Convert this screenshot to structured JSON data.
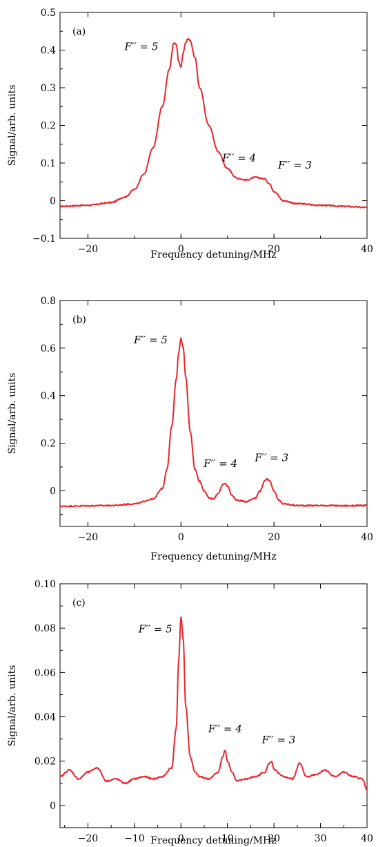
{
  "chart_data": [
    {
      "type": "line",
      "panel_label": "(a)",
      "xlabel": "Frequency detuning/MHz",
      "ylabel": "Signal/arb. units",
      "xlim": [
        -26,
        40
      ],
      "ylim": [
        -0.1,
        0.5
      ],
      "xticks": [
        -20,
        0,
        20,
        40
      ],
      "xtick_labels": [
        "−20",
        "0",
        "20",
        "40"
      ],
      "yticks": [
        -0.1,
        0,
        0.1,
        0.2,
        0.3,
        0.4,
        0.5
      ],
      "ytick_labels": [
        "−0.1",
        "0",
        "0.1",
        "0.2",
        "0.3",
        "0.4",
        "0.5"
      ],
      "grid": false,
      "color": "#e8262b",
      "series": [
        {
          "x": [
            -26,
            -20,
            -15,
            -12,
            -10,
            -8,
            -6,
            -4,
            -2.5,
            -1.5,
            -1,
            -0.5,
            0,
            0.5,
            1,
            1.5,
            2,
            3,
            4,
            6,
            8,
            10,
            12,
            14,
            16,
            18,
            19,
            20,
            22,
            25,
            30,
            35,
            40
          ],
          "y": [
            -0.015,
            -0.012,
            -0.005,
            0.01,
            0.03,
            0.07,
            0.14,
            0.25,
            0.35,
            0.42,
            0.415,
            0.37,
            0.355,
            0.395,
            0.42,
            0.43,
            0.425,
            0.38,
            0.3,
            0.2,
            0.13,
            0.085,
            0.06,
            0.055,
            0.062,
            0.058,
            0.045,
            0.025,
            0.0,
            -0.008,
            -0.012,
            -0.015,
            -0.018
          ]
        }
      ],
      "annotations": [
        {
          "text": "F′′ = 5",
          "x": -8.5,
          "y": 0.4
        },
        {
          "text": "F′′ = 4",
          "x": 12.5,
          "y": 0.105
        },
        {
          "text": "F′′ = 3",
          "x": 24.5,
          "y": 0.085
        }
      ]
    },
    {
      "type": "line",
      "panel_label": "(b)",
      "xlabel": "Frequency detuning/MHz",
      "ylabel": "Signal/arb. units",
      "xlim": [
        -26,
        40
      ],
      "ylim": [
        -0.15,
        0.8
      ],
      "xticks": [
        -20,
        0,
        20,
        40
      ],
      "xtick_labels": [
        "−20",
        "0",
        "20",
        "40"
      ],
      "yticks": [
        0,
        0.2,
        0.4,
        0.6,
        0.8
      ],
      "ytick_labels": [
        "0",
        "0.2",
        "0.4",
        "0.6",
        "0.8"
      ],
      "grid": false,
      "color": "#e8262b",
      "series": [
        {
          "x": [
            -26,
            -15,
            -10,
            -6,
            -4,
            -3,
            -2,
            -1,
            -0.5,
            0,
            0.5,
            1,
            2,
            3,
            4,
            5,
            6,
            7,
            8,
            9,
            9.5,
            10,
            11,
            12,
            14,
            16,
            17,
            18,
            18.5,
            19,
            20,
            21,
            22,
            25,
            30,
            35,
            40
          ],
          "y": [
            -0.065,
            -0.062,
            -0.055,
            -0.035,
            0.01,
            0.09,
            0.27,
            0.47,
            0.58,
            0.64,
            0.6,
            0.48,
            0.25,
            0.09,
            0.04,
            0.0,
            -0.03,
            -0.035,
            -0.01,
            0.025,
            0.03,
            0.02,
            -0.02,
            -0.04,
            -0.045,
            -0.03,
            0.0,
            0.04,
            0.05,
            0.045,
            0.0,
            -0.04,
            -0.055,
            -0.062,
            -0.062,
            -0.063,
            -0.062
          ]
        }
      ],
      "annotations": [
        {
          "text": "F′′ = 5",
          "x": -6.5,
          "y": 0.62
        },
        {
          "text": "F′′ = 4",
          "x": 8.5,
          "y": 0.1
        },
        {
          "text": "F′′ = 3",
          "x": 19.5,
          "y": 0.125
        }
      ]
    },
    {
      "type": "line",
      "panel_label": "(c)",
      "xlabel": "Frequency detuning/MHz",
      "ylabel": "Signal/arb. units",
      "xlim": [
        -26,
        40
      ],
      "ylim": [
        -0.01,
        0.1
      ],
      "xticks": [
        -20,
        -10,
        0,
        10,
        20,
        30,
        40
      ],
      "xtick_labels": [
        "−20",
        "−10",
        "0",
        "10",
        "20",
        "30",
        "40"
      ],
      "yticks": [
        0,
        0.02,
        0.04,
        0.06,
        0.08,
        0.1
      ],
      "ytick_labels": [
        "0",
        "0.02",
        "0.04",
        "0.06",
        "0.08",
        "0.10"
      ],
      "grid": false,
      "color": "#e8262b",
      "series": [
        {
          "x": [
            -26,
            -24,
            -22,
            -20,
            -18,
            -16,
            -14,
            -12,
            -10,
            -8,
            -6,
            -4,
            -2,
            -1,
            -0.5,
            0,
            0.5,
            1,
            2,
            3,
            4,
            6,
            8,
            9,
            9.5,
            10,
            11,
            12,
            14,
            16,
            18,
            19,
            19.5,
            20,
            22,
            24,
            25.5,
            27,
            29,
            31,
            33,
            35,
            37,
            39,
            40
          ],
          "y": [
            0.013,
            0.016,
            0.012,
            0.015,
            0.017,
            0.011,
            0.012,
            0.01,
            0.012,
            0.013,
            0.012,
            0.013,
            0.017,
            0.035,
            0.065,
            0.085,
            0.075,
            0.045,
            0.022,
            0.015,
            0.013,
            0.012,
            0.015,
            0.022,
            0.025,
            0.02,
            0.015,
            0.011,
            0.012,
            0.013,
            0.015,
            0.019,
            0.02,
            0.016,
            0.013,
            0.012,
            0.019,
            0.013,
            0.014,
            0.016,
            0.013,
            0.015,
            0.013,
            0.012,
            0.007
          ]
        }
      ],
      "annotations": [
        {
          "text": "F′′ = 5",
          "x": -5.5,
          "y": 0.078
        },
        {
          "text": "F′′ = 4",
          "x": 9.5,
          "y": 0.033
        },
        {
          "text": "F′′ = 3",
          "x": 21,
          "y": 0.028
        }
      ]
    }
  ]
}
